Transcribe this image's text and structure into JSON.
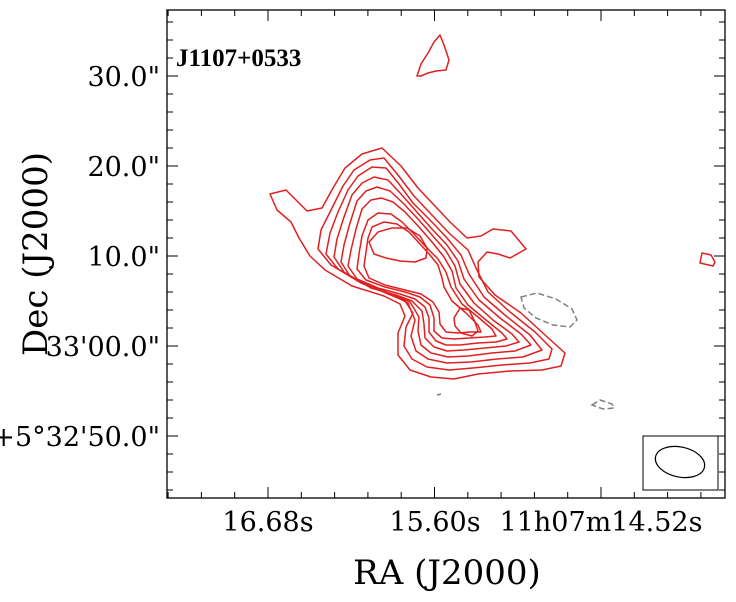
{
  "chart_data": {
    "type": "contour",
    "title": "J1107+0533",
    "xlabel": "RA (J2000)",
    "ylabel": "Dec (J2000)",
    "x_ticks": [
      "16.68s",
      "15.60s",
      "11h07m14.52s"
    ],
    "y_ticks": [
      "30.0\"",
      "20.0\"",
      "10.0\"",
      "33'00.0\"",
      "+5°32'50.0\""
    ],
    "grid": false,
    "colors": {
      "positive_contours": "#e02020",
      "negative_contours": "#808080",
      "beam": "#000000"
    },
    "contour_levels_positive": 10,
    "contour_levels_negative": 1,
    "beam": {
      "shape": "ellipse",
      "location": "bottom-right"
    }
  }
}
